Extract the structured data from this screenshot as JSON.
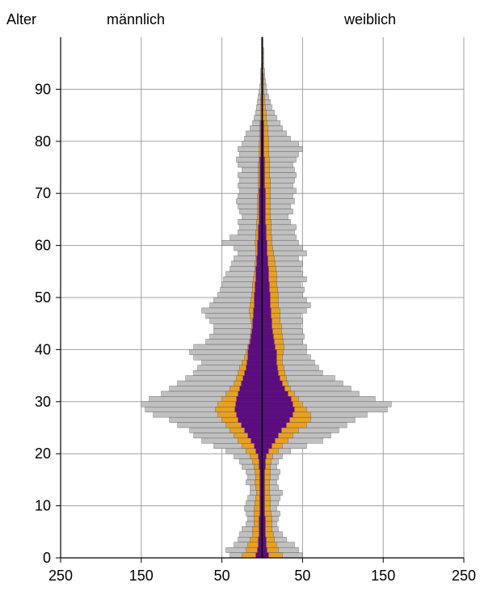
{
  "header": {
    "age_label": "Alter",
    "male_label": "männlich",
    "female_label": "weiblich"
  },
  "chart_data": {
    "type": "bar",
    "orientation": "horizontal-back-to-back",
    "xlabel": "",
    "ylabel": "Alter",
    "x_ticks": [
      "250",
      "150",
      "50",
      "50",
      "150",
      "250"
    ],
    "y_ticks": [
      "0",
      "10",
      "20",
      "30",
      "40",
      "50",
      "60",
      "70",
      "80",
      "90"
    ],
    "xlim": [
      -250,
      250
    ],
    "ylim": [
      0,
      100
    ],
    "grid": true,
    "colors": {
      "gray": "#c0c0c0",
      "orange": "#e8a020",
      "purple": "#5b0d7f",
      "outline": "#555555",
      "axis": "#000000",
      "grid": "#a0a0a0"
    },
    "male_label": "männlich",
    "female_label": "weiblich",
    "series": [
      {
        "color": "gray",
        "male": [
          40,
          45,
          35,
          30,
          28,
          25,
          20,
          18,
          20,
          22,
          20,
          18,
          15,
          15,
          20,
          18,
          20,
          25,
          28,
          35,
          45,
          60,
          75,
          85,
          90,
          105,
          115,
          135,
          145,
          150,
          140,
          125,
          115,
          105,
          95,
          85,
          80,
          75,
          85,
          90,
          85,
          70,
          65,
          60,
          60,
          65,
          70,
          75,
          65,
          60,
          55,
          52,
          50,
          48,
          45,
          40,
          38,
          35,
          30,
          35,
          50,
          40,
          30,
          28,
          30,
          25,
          28,
          30,
          32,
          30,
          28,
          30,
          28,
          30,
          25,
          30,
          32,
          28,
          30,
          25,
          22,
          20,
          15,
          12,
          10,
          8,
          7,
          6,
          5,
          4,
          3,
          2,
          2,
          2,
          1,
          1,
          1,
          1,
          1,
          1
        ],
        "female": [
          50,
          45,
          40,
          30,
          25,
          20,
          18,
          20,
          22,
          18,
          20,
          22,
          25,
          20,
          18,
          20,
          22,
          18,
          20,
          25,
          35,
          55,
          75,
          85,
          95,
          105,
          115,
          130,
          155,
          160,
          140,
          120,
          110,
          100,
          90,
          75,
          70,
          65,
          60,
          55,
          55,
          50,
          52,
          50,
          48,
          50,
          48,
          55,
          60,
          55,
          50,
          52,
          48,
          55,
          50,
          48,
          50,
          45,
          55,
          50,
          45,
          42,
          40,
          42,
          35,
          32,
          38,
          35,
          40,
          38,
          42,
          38,
          40,
          42,
          40,
          38,
          42,
          45,
          50,
          45,
          35,
          30,
          25,
          22,
          18,
          15,
          12,
          10,
          8,
          6,
          5,
          4,
          3,
          3,
          2,
          2,
          2,
          2,
          1,
          1
        ]
      },
      {
        "color": "orange",
        "male": [
          25,
          20,
          18,
          15,
          12,
          12,
          10,
          10,
          10,
          10,
          9,
          8,
          7,
          8,
          9,
          8,
          9,
          10,
          12,
          15,
          20,
          25,
          30,
          35,
          40,
          45,
          50,
          55,
          58,
          55,
          50,
          45,
          40,
          35,
          32,
          30,
          28,
          25,
          22,
          20,
          18,
          16,
          15,
          14,
          13,
          14,
          15,
          16,
          15,
          14,
          13,
          12,
          12,
          11,
          10,
          9,
          9,
          8,
          8,
          8,
          9,
          8,
          8,
          7,
          7,
          6,
          6,
          6,
          6,
          6,
          5,
          5,
          5,
          5,
          5,
          5,
          4,
          4,
          4,
          4,
          3,
          3,
          3,
          3,
          2,
          2,
          2,
          2,
          2,
          1,
          1,
          1,
          1,
          1,
          1,
          0,
          0,
          0,
          0,
          0
        ],
        "female": [
          25,
          20,
          18,
          15,
          14,
          12,
          12,
          12,
          11,
          10,
          10,
          10,
          9,
          9,
          9,
          10,
          10,
          10,
          11,
          13,
          20,
          25,
          32,
          38,
          45,
          55,
          60,
          60,
          55,
          50,
          45,
          40,
          35,
          32,
          30,
          28,
          27,
          25,
          25,
          26,
          27,
          26,
          25,
          24,
          24,
          22,
          22,
          22,
          20,
          20,
          20,
          19,
          18,
          18,
          18,
          17,
          16,
          15,
          14,
          13,
          12,
          12,
          11,
          11,
          11,
          10,
          10,
          10,
          10,
          10,
          10,
          10,
          10,
          9,
          9,
          9,
          9,
          8,
          8,
          8,
          8,
          7,
          7,
          6,
          5,
          5,
          4,
          3,
          3,
          2,
          2,
          2,
          2,
          1,
          1,
          1,
          1,
          1,
          0,
          0
        ]
      },
      {
        "color": "purple",
        "male": [
          8,
          6,
          5,
          5,
          4,
          4,
          4,
          4,
          3,
          3,
          3,
          3,
          3,
          3,
          3,
          3,
          3,
          4,
          4,
          5,
          8,
          10,
          14,
          18,
          22,
          26,
          30,
          32,
          34,
          33,
          32,
          30,
          28,
          26,
          24,
          22,
          20,
          19,
          18,
          18,
          17,
          15,
          14,
          13,
          12,
          12,
          11,
          11,
          10,
          10,
          10,
          9,
          9,
          8,
          8,
          8,
          7,
          7,
          6,
          6,
          6,
          5,
          5,
          5,
          4,
          4,
          4,
          4,
          4,
          4,
          4,
          3,
          3,
          3,
          3,
          3,
          3,
          2,
          2,
          2,
          2,
          2,
          2,
          2,
          1,
          1,
          1,
          1,
          1,
          1,
          1,
          1,
          1,
          0,
          0,
          0,
          0,
          0,
          0,
          0
        ],
        "female": [
          8,
          6,
          5,
          5,
          4,
          4,
          4,
          4,
          3,
          3,
          3,
          3,
          3,
          3,
          3,
          3,
          3,
          4,
          4,
          5,
          8,
          12,
          16,
          20,
          24,
          30,
          34,
          38,
          40,
          38,
          36,
          32,
          28,
          25,
          22,
          20,
          19,
          18,
          18,
          18,
          16,
          15,
          14,
          13,
          12,
          12,
          11,
          11,
          10,
          10,
          10,
          9,
          9,
          8,
          8,
          8,
          7,
          7,
          6,
          6,
          6,
          5,
          5,
          5,
          4,
          4,
          4,
          4,
          4,
          4,
          4,
          3,
          3,
          3,
          3,
          3,
          3,
          2,
          2,
          2,
          2,
          2,
          2,
          2,
          1,
          1,
          1,
          1,
          1,
          1,
          1,
          1,
          1,
          0,
          0,
          0,
          0,
          0,
          0,
          0
        ]
      }
    ]
  }
}
